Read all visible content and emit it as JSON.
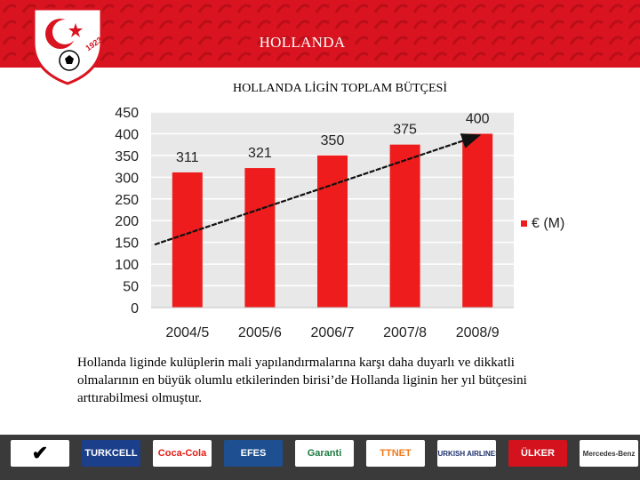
{
  "header": {
    "title": "HOLLANDA",
    "logo_year": "1923",
    "bg_color": "#d9131f"
  },
  "chart_title": "HOLLANDA LİGİN TOPLAM BÜTÇESİ",
  "chart_data": {
    "type": "bar",
    "categories": [
      "2004/5",
      "2005/6",
      "2006/7",
      "2007/8",
      "2008/9"
    ],
    "series": [
      {
        "name": "€ (M)",
        "values": [
          311,
          321,
          350,
          375,
          400
        ],
        "color": "#ee1c1c"
      }
    ],
    "data_labels": [
      "311",
      "321",
      "350",
      "375",
      "400"
    ],
    "ylim": [
      0,
      450
    ],
    "yticks": [
      0,
      50,
      100,
      150,
      200,
      250,
      300,
      350,
      400,
      450
    ],
    "ytick_labels": [
      "0",
      "50",
      "100",
      "150",
      "200",
      "250",
      "300",
      "350",
      "400",
      "450"
    ],
    "grid": true,
    "legend_position": "right",
    "trend_arrow": {
      "from": [
        0,
        145
      ],
      "to": [
        4.2,
        395
      ]
    },
    "plot_bg": "#e8e8e8",
    "grid_color": "#ffffff"
  },
  "description": "Hollanda liginde kulüplerin mali yapılandırmalarına karşı daha duyarlı ve dikkatli olmalarının en büyük olumlu etkilerinden birisi’de Hollanda liginin her yıl bütçesini arttırabilmesi olmuştur.",
  "footer": {
    "sponsors": [
      {
        "name": "nike-logo",
        "text": "✔",
        "color": "#000000"
      },
      {
        "name": "turkcell-logo",
        "text": "TURKCELL",
        "color": "#ffffff",
        "bg": "#1b3f8b"
      },
      {
        "name": "coca-cola-logo",
        "text": "Coca-Cola",
        "color": "#e41b13"
      },
      {
        "name": "efes-logo",
        "text": "EFES",
        "color": "#ffffff",
        "bg": "#1d4f91"
      },
      {
        "name": "garanti-logo",
        "text": "Garanti",
        "color": "#1a7a3e"
      },
      {
        "name": "ttnet-logo",
        "text": "TTNET",
        "color": "#f07a1b"
      },
      {
        "name": "turkish-airlines-logo",
        "text": "TURKISH AIRLINES",
        "color": "#1b2e6b"
      },
      {
        "name": "ulker-logo",
        "text": "ÜLKER",
        "color": "#ffffff",
        "bg": "#d3121d"
      },
      {
        "name": "mercedes-benz-logo",
        "text": "Mercedes-Benz",
        "color": "#333333"
      }
    ]
  }
}
